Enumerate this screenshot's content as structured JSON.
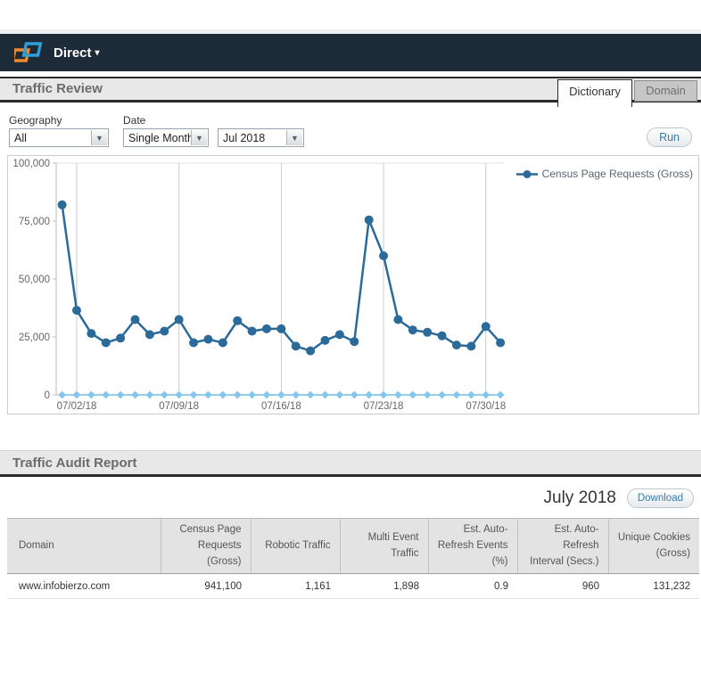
{
  "navbar": {
    "app_label": "Direct",
    "logo": "comscore-logo"
  },
  "page": {
    "title": "Traffic Review",
    "tabs": [
      {
        "label": "Dictionary",
        "active": true
      },
      {
        "label": "Domain",
        "active": false
      }
    ]
  },
  "filters": {
    "geography": {
      "label": "Geography",
      "value": "All"
    },
    "date": {
      "label": "Date",
      "type_value": "Single Month",
      "month_value": "Jul 2018"
    },
    "run_label": "Run"
  },
  "chart_data": {
    "type": "line",
    "title": "",
    "x": [
      "07/01/18",
      "07/02/18",
      "07/03/18",
      "07/04/18",
      "07/05/18",
      "07/06/18",
      "07/07/18",
      "07/08/18",
      "07/09/18",
      "07/10/18",
      "07/11/18",
      "07/12/18",
      "07/13/18",
      "07/14/18",
      "07/15/18",
      "07/16/18",
      "07/17/18",
      "07/18/18",
      "07/19/18",
      "07/20/18",
      "07/21/18",
      "07/22/18",
      "07/23/18",
      "07/24/18",
      "07/25/18",
      "07/26/18",
      "07/27/18",
      "07/28/18",
      "07/29/18",
      "07/30/18",
      "07/31/18"
    ],
    "x_tick_indices": [
      1,
      8,
      15,
      22,
      29
    ],
    "x_tick_labels": [
      "07/02/18",
      "07/09/18",
      "07/16/18",
      "07/23/18",
      "07/30/18"
    ],
    "ylim": [
      0,
      100000
    ],
    "y_ticks": [
      0,
      25000,
      50000,
      75000,
      100000
    ],
    "y_tick_labels": [
      "0",
      "25,000",
      "50,000",
      "75,000",
      "100,000"
    ],
    "grid": "weekly-vertical",
    "legend_position": "top-right",
    "series": [
      {
        "name": "Census Page Requests (Gross)",
        "color": "#2b6a99",
        "marker": "circle",
        "values": [
          82000,
          36500,
          26500,
          22500,
          24500,
          32500,
          26000,
          27500,
          32500,
          22500,
          24000,
          22500,
          32000,
          27500,
          28500,
          28500,
          21000,
          19000,
          23500,
          26000,
          23000,
          75500,
          60000,
          32500,
          28000,
          27000,
          25500,
          21500,
          21000,
          29500,
          22500
        ]
      },
      {
        "name": "",
        "color": "#85c6ec",
        "marker": "diamond",
        "values": [
          0,
          0,
          0,
          0,
          0,
          0,
          0,
          0,
          0,
          0,
          0,
          0,
          0,
          0,
          0,
          0,
          0,
          0,
          0,
          0,
          0,
          0,
          0,
          0,
          0,
          0,
          0,
          0,
          0,
          0,
          0
        ]
      }
    ]
  },
  "report": {
    "title": "Traffic Audit Report",
    "period": "July 2018",
    "download_label": "Download",
    "table": {
      "columns": [
        "Domain",
        "Census Page Requests (Gross)",
        "Robotic Traffic",
        "Multi Event Traffic",
        "Est. Auto-Refresh Events (%)",
        "Est. Auto-Refresh Interval (Secs.)",
        "Unique Cookies (Gross)"
      ],
      "rows": [
        [
          "www.infobierzo.com",
          "941,100",
          "1,161",
          "1,898",
          "0.9",
          "960",
          "131,232"
        ]
      ]
    }
  },
  "colors": {
    "navbar_bg": "#1d2b39",
    "accent_line": "#2b6a99",
    "zero_series": "#85c6ec",
    "header_border": "#2b2b2b",
    "button_text": "#3a7ca8",
    "logo_blue": "#2d9fd8",
    "logo_orange": "#ef8a2f"
  }
}
